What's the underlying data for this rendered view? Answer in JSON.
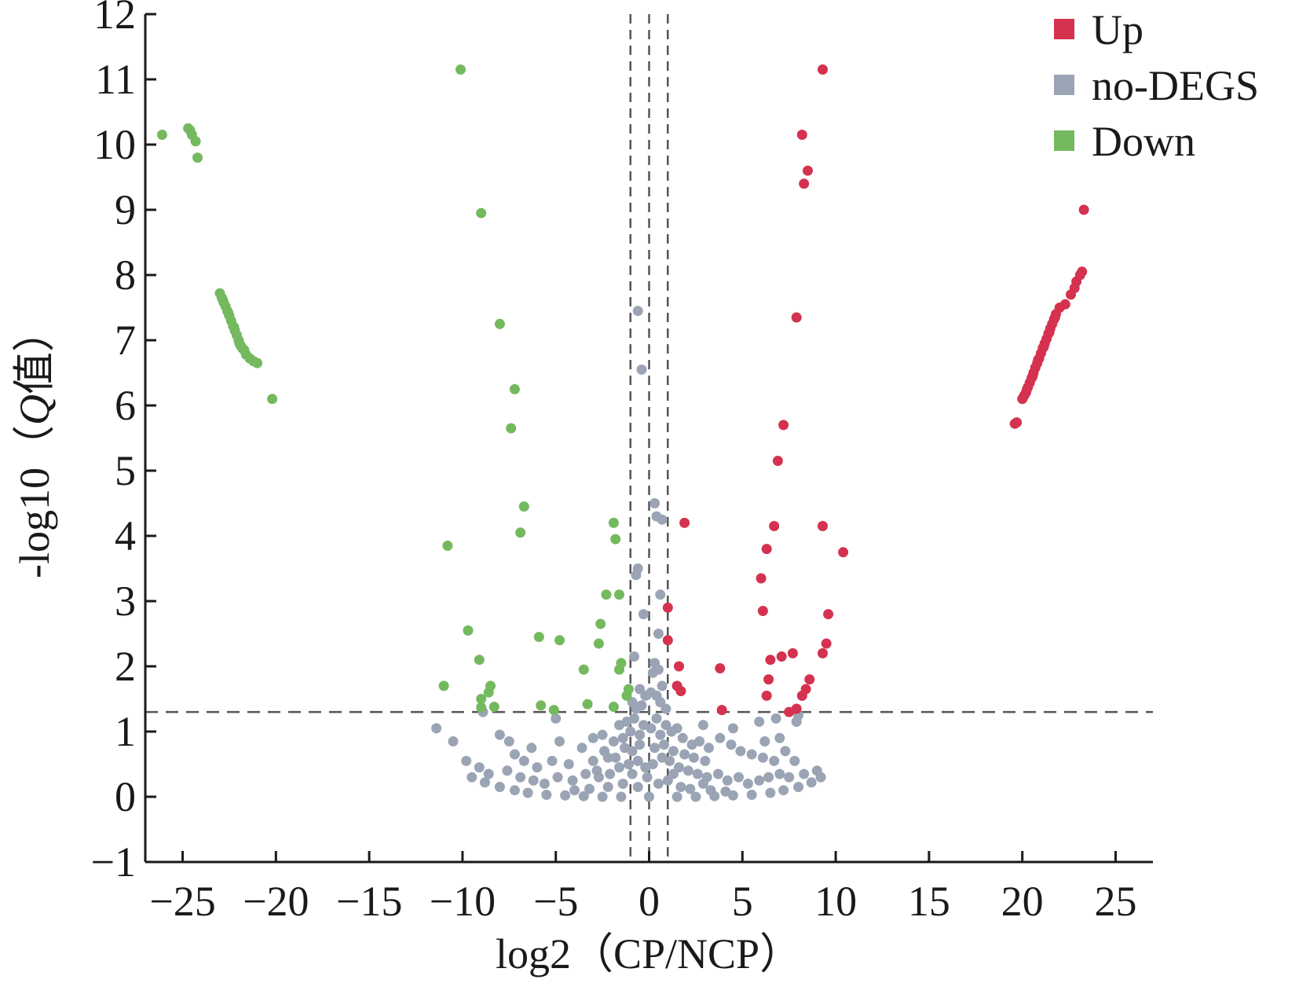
{
  "chart_data": {
    "type": "scatter",
    "title": "",
    "xlabel": "log2（CP/NCP）",
    "ylabel_prefix": "-log10（",
    "ylabel_q": "Q",
    "ylabel_suffix": "值）",
    "xlim": [
      -27,
      27
    ],
    "ylim": [
      -1,
      12
    ],
    "xticks": [
      -25,
      -20,
      -15,
      -10,
      -5,
      0,
      5,
      10,
      15,
      20,
      25
    ],
    "xtick_labels": [
      "−25",
      "−20",
      "−15",
      "−10",
      "−5",
      "0",
      "5",
      "10",
      "15",
      "20",
      "25"
    ],
    "yticks": [
      -1,
      0,
      1,
      2,
      3,
      4,
      5,
      6,
      7,
      8,
      9,
      10,
      11,
      12
    ],
    "ytick_labels": [
      "−1",
      "0",
      "1",
      "2",
      "3",
      "4",
      "5",
      "6",
      "7",
      "8",
      "9",
      "10",
      "11",
      "12"
    ],
    "grid": false,
    "legend_position": "top-right",
    "thresholds": {
      "vertical_x": [
        -1,
        0,
        1
      ],
      "horizontal_y": 1.3
    },
    "series": [
      {
        "name": "Up",
        "color": "#d4324f",
        "points": [
          [
            9.3,
            11.15
          ],
          [
            8.2,
            10.15
          ],
          [
            8.5,
            9.6
          ],
          [
            8.3,
            9.4
          ],
          [
            23.3,
            9.0
          ],
          [
            7.9,
            7.35
          ],
          [
            7.2,
            5.7
          ],
          [
            6.9,
            5.15
          ],
          [
            1.9,
            4.2
          ],
          [
            6.7,
            4.15
          ],
          [
            9.3,
            4.15
          ],
          [
            10.4,
            3.75
          ],
          [
            6.3,
            3.8
          ],
          [
            6.0,
            3.35
          ],
          [
            6.1,
            2.85
          ],
          [
            1.0,
            2.9
          ],
          [
            9.6,
            2.8
          ],
          [
            1.0,
            2.4
          ],
          [
            9.5,
            2.35
          ],
          [
            9.3,
            2.2
          ],
          [
            7.7,
            2.2
          ],
          [
            7.1,
            2.15
          ],
          [
            6.5,
            2.1
          ],
          [
            1.6,
            2.0
          ],
          [
            3.8,
            1.97
          ],
          [
            8.6,
            1.8
          ],
          [
            6.4,
            1.8
          ],
          [
            8.4,
            1.65
          ],
          [
            1.5,
            1.7
          ],
          [
            1.7,
            1.62
          ],
          [
            8.2,
            1.55
          ],
          [
            6.3,
            1.55
          ],
          [
            7.9,
            1.35
          ],
          [
            3.9,
            1.33
          ],
          [
            7.5,
            1.3
          ],
          [
            19.6,
            5.72
          ],
          [
            19.7,
            5.74
          ],
          [
            20.0,
            6.1
          ],
          [
            20.1,
            6.15
          ],
          [
            20.2,
            6.2
          ],
          [
            20.3,
            6.28
          ],
          [
            20.4,
            6.35
          ],
          [
            20.5,
            6.42
          ],
          [
            20.6,
            6.5
          ],
          [
            20.7,
            6.58
          ],
          [
            20.8,
            6.65
          ],
          [
            20.9,
            6.72
          ],
          [
            21.0,
            6.8
          ],
          [
            21.1,
            6.88
          ],
          [
            21.2,
            6.95
          ],
          [
            21.3,
            7.02
          ],
          [
            21.4,
            7.1
          ],
          [
            21.5,
            7.18
          ],
          [
            21.6,
            7.25
          ],
          [
            21.7,
            7.32
          ],
          [
            21.8,
            7.4
          ],
          [
            22.0,
            7.5
          ],
          [
            22.3,
            7.55
          ],
          [
            22.6,
            7.7
          ],
          [
            22.8,
            7.8
          ],
          [
            22.9,
            7.9
          ],
          [
            23.1,
            8.0
          ],
          [
            23.2,
            8.05
          ],
          [
            20.25,
            6.25
          ],
          [
            20.55,
            6.45
          ],
          [
            20.85,
            6.7
          ],
          [
            21.15,
            6.9
          ],
          [
            21.45,
            7.12
          ],
          [
            21.75,
            7.35
          ]
        ]
      },
      {
        "name": "no-DEGS",
        "color": "#9aa4b4",
        "points": [
          [
            -0.6,
            7.45
          ],
          [
            -0.4,
            6.55
          ],
          [
            0.3,
            4.5
          ],
          [
            0.4,
            4.3
          ],
          [
            0.7,
            4.25
          ],
          [
            -0.6,
            3.5
          ],
          [
            -0.7,
            3.4
          ],
          [
            0.6,
            3.1
          ],
          [
            -0.3,
            2.8
          ],
          [
            0.5,
            2.5
          ],
          [
            -0.8,
            2.15
          ],
          [
            0.3,
            2.05
          ],
          [
            0.5,
            1.95
          ],
          [
            0.2,
            1.9
          ],
          [
            -0.5,
            1.65
          ],
          [
            0.7,
            1.7
          ],
          [
            -0.2,
            1.55
          ],
          [
            0.6,
            1.45
          ],
          [
            -0.9,
            1.45
          ],
          [
            0.9,
            1.35
          ],
          [
            -0.4,
            1.4
          ],
          [
            0.1,
            1.6
          ],
          [
            -0.7,
            1.35
          ],
          [
            0.4,
            1.55
          ],
          [
            -11.4,
            1.05
          ],
          [
            -10.5,
            0.85
          ],
          [
            -9.8,
            0.55
          ],
          [
            -9.1,
            0.45
          ],
          [
            -8.6,
            0.35
          ],
          [
            -8.0,
            0.95
          ],
          [
            -7.2,
            0.65
          ],
          [
            -6.7,
            0.55
          ],
          [
            -6.0,
            0.45
          ],
          [
            -5.2,
            0.55
          ],
          [
            -4.8,
            0.85
          ],
          [
            -4.3,
            0.5
          ],
          [
            -3.6,
            0.75
          ],
          [
            -3.0,
            0.9
          ],
          [
            -2.5,
            0.95
          ],
          [
            -2.2,
            0.6
          ],
          [
            -1.9,
            0.85
          ],
          [
            -1.6,
            1.1
          ],
          [
            -1.4,
            0.9
          ],
          [
            -1.2,
            1.15
          ],
          [
            -1.0,
            1.0
          ],
          [
            -0.8,
            1.2
          ],
          [
            -0.5,
            0.95
          ],
          [
            -0.3,
            1.1
          ],
          [
            0.1,
            1.05
          ],
          [
            0.4,
            1.2
          ],
          [
            0.6,
            0.95
          ],
          [
            0.9,
            1.1
          ],
          [
            1.2,
            1.0
          ],
          [
            1.5,
            1.05
          ],
          [
            1.8,
            0.9
          ],
          [
            2.3,
            0.8
          ],
          [
            2.7,
            0.85
          ],
          [
            3.2,
            0.75
          ],
          [
            3.8,
            0.9
          ],
          [
            4.4,
            0.8
          ],
          [
            4.9,
            0.7
          ],
          [
            5.5,
            0.65
          ],
          [
            6.1,
            0.6
          ],
          [
            6.7,
            0.55
          ],
          [
            7.3,
            0.7
          ],
          [
            7.8,
            0.55
          ],
          [
            8.3,
            0.35
          ],
          [
            9.0,
            0.4
          ],
          [
            8.0,
            1.25
          ],
          [
            6.8,
            1.2
          ],
          [
            5.9,
            1.15
          ],
          [
            7.9,
            1.15
          ],
          [
            4.5,
            1.05
          ],
          [
            2.9,
            1.1
          ],
          [
            -8.9,
            1.3
          ],
          [
            -5.0,
            1.2
          ],
          [
            -9.5,
            0.3
          ],
          [
            -8.8,
            0.22
          ],
          [
            -8.0,
            0.15
          ],
          [
            -7.2,
            0.1
          ],
          [
            -6.5,
            0.06
          ],
          [
            -5.5,
            0.03
          ],
          [
            -4.5,
            0.02
          ],
          [
            -3.5,
            0.01
          ],
          [
            -2.5,
            0.0
          ],
          [
            -1.5,
            0.0
          ],
          [
            0.0,
            0.0
          ],
          [
            1.5,
            0.0
          ],
          [
            2.5,
            0.0
          ],
          [
            3.5,
            0.01
          ],
          [
            4.5,
            0.02
          ],
          [
            5.5,
            0.03
          ],
          [
            6.5,
            0.06
          ],
          [
            7.2,
            0.1
          ],
          [
            8.0,
            0.15
          ],
          [
            8.7,
            0.22
          ],
          [
            9.2,
            0.3
          ],
          [
            -7.6,
            0.4
          ],
          [
            -6.9,
            0.3
          ],
          [
            -6.2,
            0.25
          ],
          [
            -5.6,
            0.2
          ],
          [
            -4.9,
            0.3
          ],
          [
            -4.1,
            0.25
          ],
          [
            -3.4,
            0.35
          ],
          [
            -2.8,
            0.4
          ],
          [
            -2.1,
            0.35
          ],
          [
            -1.6,
            0.45
          ],
          [
            -1.1,
            0.5
          ],
          [
            -0.6,
            0.55
          ],
          [
            -0.2,
            0.45
          ],
          [
            0.2,
            0.5
          ],
          [
            0.7,
            0.6
          ],
          [
            1.1,
            0.55
          ],
          [
            1.6,
            0.45
          ],
          [
            2.1,
            0.4
          ],
          [
            2.6,
            0.35
          ],
          [
            3.1,
            0.3
          ],
          [
            3.7,
            0.35
          ],
          [
            4.2,
            0.25
          ],
          [
            4.8,
            0.3
          ],
          [
            5.3,
            0.2
          ],
          [
            5.9,
            0.25
          ],
          [
            6.4,
            0.3
          ],
          [
            7.0,
            0.35
          ],
          [
            7.5,
            0.3
          ],
          [
            -0.9,
            0.7
          ],
          [
            -0.5,
            0.8
          ],
          [
            0.3,
            0.75
          ],
          [
            0.8,
            0.8
          ],
          [
            1.3,
            0.7
          ],
          [
            -1.3,
            0.75
          ],
          [
            -1.8,
            0.6
          ],
          [
            1.9,
            0.65
          ],
          [
            -2.4,
            0.7
          ],
          [
            2.4,
            0.6
          ],
          [
            -3.0,
            0.55
          ],
          [
            3.0,
            0.55
          ],
          [
            -0.1,
            0.3
          ],
          [
            0.5,
            0.2
          ],
          [
            -0.6,
            0.15
          ],
          [
            1.0,
            0.25
          ],
          [
            -1.4,
            0.2
          ],
          [
            1.7,
            0.15
          ],
          [
            -2.2,
            0.15
          ],
          [
            2.2,
            0.12
          ],
          [
            -3.2,
            0.12
          ],
          [
            3.3,
            0.1
          ],
          [
            -4.0,
            0.1
          ],
          [
            4.1,
            0.08
          ],
          [
            6.2,
            0.85
          ],
          [
            7.0,
            0.9
          ],
          [
            -6.3,
            0.75
          ],
          [
            -7.5,
            0.85
          ],
          [
            -2.7,
            0.3
          ],
          [
            2.9,
            0.2
          ],
          [
            -0.9,
            0.35
          ],
          [
            1.3,
            0.35
          ]
        ]
      },
      {
        "name": "Down",
        "color": "#74b95e",
        "points": [
          [
            -10.1,
            11.15
          ],
          [
            -26.1,
            10.15
          ],
          [
            -24.7,
            10.25
          ],
          [
            -24.6,
            10.22
          ],
          [
            -24.5,
            10.15
          ],
          [
            -24.3,
            10.05
          ],
          [
            -24.2,
            9.8
          ],
          [
            -9.0,
            8.95
          ],
          [
            -8.0,
            7.25
          ],
          [
            -7.2,
            6.25
          ],
          [
            -7.4,
            5.65
          ],
          [
            -20.2,
            6.1
          ],
          [
            -6.7,
            4.45
          ],
          [
            -1.9,
            4.2
          ],
          [
            -6.9,
            4.05
          ],
          [
            -1.8,
            3.95
          ],
          [
            -10.8,
            3.85
          ],
          [
            -2.3,
            3.1
          ],
          [
            -1.6,
            3.1
          ],
          [
            -9.7,
            2.55
          ],
          [
            -2.6,
            2.65
          ],
          [
            -5.9,
            2.45
          ],
          [
            -4.8,
            2.4
          ],
          [
            -2.7,
            2.35
          ],
          [
            -9.1,
            2.1
          ],
          [
            -1.5,
            2.05
          ],
          [
            -3.5,
            1.95
          ],
          [
            -1.6,
            1.95
          ],
          [
            -11.0,
            1.7
          ],
          [
            -8.5,
            1.7
          ],
          [
            -8.6,
            1.6
          ],
          [
            -1.1,
            1.65
          ],
          [
            -9.0,
            1.5
          ],
          [
            -1.2,
            1.55
          ],
          [
            -3.3,
            1.42
          ],
          [
            -5.8,
            1.4
          ],
          [
            -8.3,
            1.38
          ],
          [
            -9.0,
            1.37
          ],
          [
            -5.1,
            1.33
          ],
          [
            -1.9,
            1.38
          ],
          [
            -23.0,
            7.72
          ],
          [
            -22.9,
            7.65
          ],
          [
            -22.8,
            7.58
          ],
          [
            -22.7,
            7.52
          ],
          [
            -22.6,
            7.45
          ],
          [
            -22.5,
            7.38
          ],
          [
            -22.4,
            7.3
          ],
          [
            -22.3,
            7.22
          ],
          [
            -22.2,
            7.15
          ],
          [
            -22.1,
            7.08
          ],
          [
            -22.0,
            7.0
          ],
          [
            -21.9,
            6.92
          ],
          [
            -21.7,
            6.85
          ],
          [
            -21.6,
            6.78
          ],
          [
            -21.4,
            6.72
          ],
          [
            -21.2,
            6.68
          ],
          [
            -21.0,
            6.65
          ],
          [
            -22.85,
            7.62
          ],
          [
            -22.55,
            7.42
          ],
          [
            -22.25,
            7.2
          ],
          [
            -21.95,
            6.95
          ],
          [
            -21.8,
            6.88
          ]
        ]
      }
    ]
  }
}
